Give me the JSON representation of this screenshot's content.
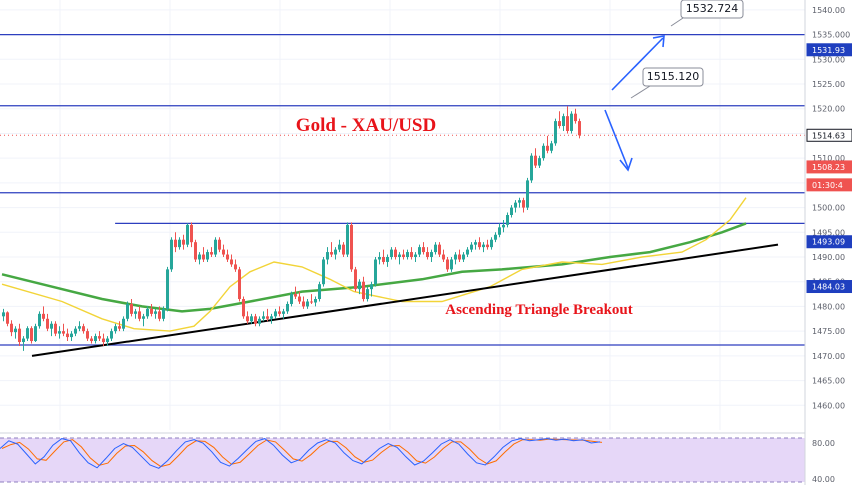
{
  "chart_data": {
    "type": "candlestick",
    "instrument": "Gold - XAU/USD",
    "price_axis": {
      "min": 1455,
      "max": 1542,
      "ticks": [
        1540,
        1535,
        1530,
        1525,
        1520,
        1515,
        1510,
        1505,
        1500,
        1495,
        1490,
        1485,
        1480,
        1475,
        1470,
        1465,
        1460
      ],
      "tick_labels": [
        "1540.00",
        "1535.000",
        "1530.00",
        "1525.00",
        "1520.00",
        "1515.00",
        "1510.00",
        "1505.00",
        "1500.00",
        "1495.00",
        "1490.00",
        "1485.00",
        "1480.00",
        "1475.00",
        "1470.00",
        "1465.00",
        "1460.00"
      ]
    },
    "price_tags": [
      {
        "label": "1531.93",
        "value": 1531.93,
        "bg": "#1f3fbf",
        "fg": "#ffffff"
      },
      {
        "label": "1514.63",
        "value": 1514.63,
        "bg": "#ffffff",
        "fg": "#131722",
        "border": "#131722"
      },
      {
        "label": "1508.23",
        "value": 1508.23,
        "bg": "#ef5350",
        "fg": "#ffffff"
      },
      {
        "label": "01:30:4",
        "value": 1504.6,
        "bg": "#ef5350",
        "fg": "#ffffff"
      },
      {
        "label": "1493.09",
        "value": 1493.09,
        "bg": "#1f3fbf",
        "fg": "#ffffff"
      },
      {
        "label": "1484.03",
        "value": 1484.03,
        "bg": "#1f3fbf",
        "fg": "#ffffff"
      }
    ],
    "horizontal_levels": [
      {
        "price": 1535.0,
        "color": "#2d3fbf",
        "x_start": 0,
        "x_end": 1
      },
      {
        "price": 1520.6,
        "color": "#2d3fbf",
        "x_start": 0,
        "x_end": 1
      },
      {
        "price": 1503.0,
        "color": "#2d3fbf",
        "x_start": 0,
        "x_end": 1
      },
      {
        "price": 1496.8,
        "color": "#2d3fbf",
        "x_start": 0.143,
        "x_end": 1
      },
      {
        "price": 1472.2,
        "color": "#2d3fbf",
        "x_start": 0,
        "x_end": 1
      }
    ],
    "dotted_level": {
      "price": 1514.63,
      "color": "#ef5350"
    },
    "trendline": {
      "from": [
        1,
        1470.0
      ],
      "to": [
        240,
        1492.5
      ],
      "color": "#000000"
    },
    "sma_fast": {
      "color": "#f2d438",
      "points": [
        [
          0,
          1484.5
        ],
        [
          15,
          1481.0
        ],
        [
          25,
          1477.5
        ],
        [
          33,
          1475.5
        ],
        [
          42,
          1475.0
        ],
        [
          48,
          1476.0
        ],
        [
          52,
          1479.0
        ],
        [
          57,
          1484.0
        ],
        [
          62,
          1487.0
        ],
        [
          68,
          1489.0
        ],
        [
          75,
          1488.0
        ],
        [
          82,
          1485.5
        ],
        [
          88,
          1483.0
        ],
        [
          100,
          1481.0
        ],
        [
          110,
          1481.0
        ],
        [
          122,
          1484.0
        ],
        [
          130,
          1487.5
        ],
        [
          140,
          1489.0
        ],
        [
          150,
          1488.5
        ],
        [
          160,
          1490.0
        ],
        [
          170,
          1491.0
        ],
        [
          176,
          1493.5
        ],
        [
          182,
          1497.5
        ],
        [
          186,
          1502.0
        ]
      ]
    },
    "sma_slow": {
      "color": "#46a843",
      "points": [
        [
          0,
          1486.5
        ],
        [
          10,
          1484.5
        ],
        [
          25,
          1481.5
        ],
        [
          35,
          1480.0
        ],
        [
          45,
          1479.0
        ],
        [
          52,
          1479.5
        ],
        [
          62,
          1481.0
        ],
        [
          75,
          1483.0
        ],
        [
          90,
          1484.0
        ],
        [
          105,
          1485.5
        ],
        [
          115,
          1487.0
        ],
        [
          125,
          1487.5
        ],
        [
          140,
          1488.5
        ],
        [
          152,
          1490.0
        ],
        [
          162,
          1491.0
        ],
        [
          172,
          1493.0
        ],
        [
          180,
          1495.0
        ],
        [
          186,
          1496.8
        ]
      ]
    },
    "candles": [
      [
        1478.0,
        1479.5,
        1477.0,
        1478.8
      ],
      [
        1478.8,
        1479.0,
        1476.0,
        1476.5
      ],
      [
        1476.5,
        1477.2,
        1474.0,
        1474.8
      ],
      [
        1474.8,
        1476.0,
        1473.5,
        1475.5
      ],
      [
        1475.5,
        1476.5,
        1472.0,
        1472.8
      ],
      [
        1472.8,
        1474.0,
        1471.0,
        1473.5
      ],
      [
        1473.5,
        1476.0,
        1473.0,
        1475.6
      ],
      [
        1475.6,
        1476.0,
        1472.5,
        1473.0
      ],
      [
        1473.0,
        1476.5,
        1472.8,
        1476.0
      ],
      [
        1476.0,
        1479.0,
        1475.5,
        1478.5
      ],
      [
        1478.5,
        1480.0,
        1477.0,
        1477.5
      ],
      [
        1477.5,
        1478.5,
        1475.0,
        1475.5
      ],
      [
        1475.5,
        1477.0,
        1474.0,
        1476.5
      ],
      [
        1476.5,
        1477.0,
        1474.0,
        1474.5
      ],
      [
        1474.5,
        1476.0,
        1473.5,
        1475.0
      ],
      [
        1475.0,
        1476.5,
        1474.0,
        1474.5
      ],
      [
        1474.5,
        1475.5,
        1473.0,
        1473.8
      ],
      [
        1473.8,
        1475.0,
        1473.0,
        1474.5
      ],
      [
        1474.5,
        1476.0,
        1474.0,
        1475.5
      ],
      [
        1475.5,
        1477.0,
        1475.0,
        1476.0
      ],
      [
        1476.0,
        1476.5,
        1474.5,
        1475.0
      ],
      [
        1475.0,
        1475.5,
        1473.0,
        1473.5
      ],
      [
        1473.5,
        1474.0,
        1472.5,
        1473.0
      ],
      [
        1473.0,
        1474.5,
        1472.5,
        1474.0
      ],
      [
        1474.0,
        1475.0,
        1473.0,
        1473.5
      ],
      [
        1473.5,
        1474.5,
        1472.0,
        1472.8
      ],
      [
        1472.8,
        1474.0,
        1472.0,
        1473.5
      ],
      [
        1473.5,
        1475.5,
        1473.0,
        1475.0
      ],
      [
        1475.0,
        1476.5,
        1474.5,
        1476.0
      ],
      [
        1476.0,
        1477.0,
        1475.0,
        1475.5
      ],
      [
        1475.5,
        1478.0,
        1475.0,
        1477.5
      ],
      [
        1477.5,
        1481.0,
        1477.0,
        1480.5
      ],
      [
        1480.5,
        1481.5,
        1478.0,
        1478.5
      ],
      [
        1478.5,
        1479.5,
        1477.5,
        1479.0
      ],
      [
        1479.0,
        1480.0,
        1477.0,
        1477.5
      ],
      [
        1477.5,
        1478.5,
        1476.0,
        1478.0
      ],
      [
        1478.0,
        1480.0,
        1477.5,
        1479.5
      ],
      [
        1479.5,
        1480.5,
        1478.0,
        1478.5
      ],
      [
        1478.5,
        1479.5,
        1477.5,
        1479.0
      ],
      [
        1479.0,
        1480.0,
        1477.0,
        1477.5
      ],
      [
        1477.5,
        1480.0,
        1477.0,
        1479.5
      ],
      [
        1479.5,
        1488.0,
        1479.0,
        1487.5
      ],
      [
        1487.5,
        1494.0,
        1487.0,
        1493.5
      ],
      [
        1493.5,
        1495.0,
        1491.0,
        1492.0
      ],
      [
        1492.0,
        1494.0,
        1491.5,
        1493.5
      ],
      [
        1493.5,
        1494.5,
        1491.5,
        1492.5
      ],
      [
        1492.5,
        1496.8,
        1492.0,
        1496.5
      ],
      [
        1496.5,
        1497.0,
        1492.0,
        1493.0
      ],
      [
        1493.0,
        1493.5,
        1489.0,
        1489.5
      ],
      [
        1489.5,
        1491.0,
        1488.5,
        1490.5
      ],
      [
        1490.5,
        1492.0,
        1489.0,
        1489.5
      ],
      [
        1489.5,
        1491.5,
        1489.0,
        1491.0
      ],
      [
        1491.0,
        1492.0,
        1490.0,
        1490.5
      ],
      [
        1490.5,
        1494.0,
        1490.0,
        1493.5
      ],
      [
        1493.5,
        1494.0,
        1491.0,
        1491.5
      ],
      [
        1491.5,
        1492.5,
        1490.0,
        1490.5
      ],
      [
        1490.5,
        1491.5,
        1489.0,
        1489.5
      ],
      [
        1489.5,
        1490.5,
        1488.0,
        1488.5
      ],
      [
        1488.5,
        1489.5,
        1487.0,
        1487.5
      ],
      [
        1487.5,
        1488.0,
        1481.0,
        1481.5
      ],
      [
        1481.5,
        1482.0,
        1477.5,
        1478.0
      ],
      [
        1478.0,
        1479.0,
        1476.5,
        1477.0
      ],
      [
        1477.0,
        1478.5,
        1476.5,
        1478.0
      ],
      [
        1478.0,
        1478.5,
        1476.0,
        1476.5
      ],
      [
        1476.5,
        1478.0,
        1476.0,
        1477.5
      ],
      [
        1477.5,
        1479.0,
        1477.0,
        1478.0
      ],
      [
        1478.0,
        1479.5,
        1477.0,
        1477.5
      ],
      [
        1477.5,
        1478.5,
        1476.5,
        1478.0
      ],
      [
        1478.0,
        1479.5,
        1477.5,
        1479.0
      ],
      [
        1479.0,
        1480.0,
        1478.0,
        1478.5
      ],
      [
        1478.5,
        1479.5,
        1477.5,
        1479.0
      ],
      [
        1479.0,
        1481.0,
        1478.5,
        1480.5
      ],
      [
        1480.5,
        1483.0,
        1480.0,
        1482.5
      ],
      [
        1482.5,
        1484.0,
        1481.5,
        1482.0
      ],
      [
        1482.0,
        1483.0,
        1480.5,
        1481.0
      ],
      [
        1481.0,
        1482.0,
        1479.5,
        1480.0
      ],
      [
        1480.0,
        1481.5,
        1479.5,
        1481.0
      ],
      [
        1481.0,
        1482.5,
        1480.5,
        1480.8
      ],
      [
        1480.8,
        1482.0,
        1480.0,
        1481.5
      ],
      [
        1481.5,
        1485.0,
        1481.0,
        1484.5
      ],
      [
        1484.5,
        1490.0,
        1484.0,
        1489.5
      ],
      [
        1489.5,
        1492.0,
        1488.5,
        1491.0
      ],
      [
        1491.0,
        1493.0,
        1490.0,
        1490.5
      ],
      [
        1490.5,
        1492.0,
        1489.5,
        1491.5
      ],
      [
        1491.5,
        1493.5,
        1491.0,
        1492.5
      ],
      [
        1492.5,
        1493.0,
        1490.0,
        1490.5
      ],
      [
        1490.5,
        1497.0,
        1490.0,
        1496.5
      ],
      [
        1496.5,
        1497.0,
        1487.0,
        1487.5
      ],
      [
        1487.5,
        1488.0,
        1483.0,
        1483.5
      ],
      [
        1483.5,
        1485.5,
        1482.5,
        1485.0
      ],
      [
        1485.0,
        1486.0,
        1481.0,
        1481.5
      ],
      [
        1481.5,
        1484.0,
        1481.0,
        1483.5
      ],
      [
        1483.5,
        1485.0,
        1482.0,
        1484.5
      ],
      [
        1484.5,
        1490.0,
        1484.0,
        1489.5
      ],
      [
        1489.5,
        1491.0,
        1488.5,
        1490.0
      ],
      [
        1490.0,
        1491.5,
        1488.5,
        1489.0
      ],
      [
        1489.0,
        1490.5,
        1488.0,
        1490.0
      ],
      [
        1490.0,
        1492.0,
        1489.5,
        1491.5
      ],
      [
        1491.5,
        1492.0,
        1489.5,
        1490.0
      ],
      [
        1490.0,
        1491.0,
        1488.5,
        1490.5
      ],
      [
        1490.5,
        1491.5,
        1489.5,
        1490.0
      ],
      [
        1490.0,
        1491.5,
        1489.5,
        1491.0
      ],
      [
        1491.0,
        1492.0,
        1489.5,
        1490.0
      ],
      [
        1490.0,
        1491.0,
        1489.0,
        1490.5
      ],
      [
        1490.5,
        1492.5,
        1490.0,
        1492.0
      ],
      [
        1492.0,
        1493.0,
        1490.5,
        1491.0
      ],
      [
        1491.0,
        1492.0,
        1489.5,
        1490.0
      ],
      [
        1490.0,
        1491.5,
        1489.0,
        1491.0
      ],
      [
        1491.0,
        1493.0,
        1490.5,
        1492.5
      ],
      [
        1492.5,
        1493.0,
        1490.0,
        1490.5
      ],
      [
        1490.5,
        1491.5,
        1489.0,
        1489.5
      ],
      [
        1489.5,
        1490.0,
        1487.0,
        1487.5
      ],
      [
        1487.5,
        1490.0,
        1487.0,
        1489.5
      ],
      [
        1489.5,
        1491.0,
        1488.5,
        1490.5
      ],
      [
        1490.5,
        1491.5,
        1489.0,
        1489.5
      ],
      [
        1489.5,
        1491.0,
        1489.0,
        1490.5
      ],
      [
        1490.5,
        1492.0,
        1490.0,
        1491.5
      ],
      [
        1491.5,
        1493.0,
        1491.0,
        1492.5
      ],
      [
        1492.5,
        1493.5,
        1491.5,
        1493.0
      ],
      [
        1493.0,
        1494.0,
        1491.5,
        1492.0
      ],
      [
        1492.0,
        1493.0,
        1491.0,
        1492.5
      ],
      [
        1492.5,
        1493.5,
        1491.5,
        1492.0
      ],
      [
        1492.0,
        1494.0,
        1491.5,
        1493.5
      ],
      [
        1493.5,
        1495.0,
        1493.0,
        1494.5
      ],
      [
        1494.5,
        1496.8,
        1494.0,
        1496.0
      ],
      [
        1496.0,
        1497.5,
        1495.0,
        1496.5
      ],
      [
        1496.5,
        1499.0,
        1496.0,
        1498.5
      ],
      [
        1498.5,
        1500.5,
        1498.0,
        1500.0
      ],
      [
        1500.0,
        1501.5,
        1499.0,
        1501.0
      ],
      [
        1501.0,
        1502.0,
        1500.0,
        1501.5
      ],
      [
        1501.5,
        1502.0,
        1499.0,
        1500.0
      ],
      [
        1500.0,
        1506.0,
        1499.5,
        1505.5
      ],
      [
        1505.5,
        1511.0,
        1505.0,
        1510.5
      ],
      [
        1510.5,
        1512.0,
        1508.0,
        1508.5
      ],
      [
        1508.5,
        1510.5,
        1508.0,
        1510.0
      ],
      [
        1510.0,
        1513.0,
        1509.5,
        1512.5
      ],
      [
        1512.5,
        1514.5,
        1511.0,
        1511.5
      ],
      [
        1511.5,
        1513.5,
        1511.0,
        1513.0
      ],
      [
        1513.0,
        1518.0,
        1512.5,
        1517.5
      ],
      [
        1517.5,
        1519.5,
        1516.0,
        1516.5
      ],
      [
        1516.5,
        1519.0,
        1515.5,
        1518.5
      ],
      [
        1518.5,
        1520.5,
        1515.0,
        1515.5
      ],
      [
        1515.5,
        1519.5,
        1515.0,
        1519.0
      ],
      [
        1519.0,
        1520.0,
        1517.0,
        1517.5
      ],
      [
        1517.5,
        1518.0,
        1514.0,
        1514.63
      ]
    ],
    "rsi": {
      "levels": [
        80,
        20
      ],
      "visible_labels": [
        "80.00",
        "40.00"
      ],
      "k_color": "#2962ff",
      "d_color": "#ff6d00",
      "values": [
        70,
        84,
        78,
        60,
        42,
        55,
        76,
        88,
        84,
        62,
        44,
        35,
        52,
        70,
        79,
        72,
        56,
        40,
        34,
        48,
        66,
        82,
        86,
        80,
        64,
        45,
        38,
        52,
        68,
        83,
        88,
        76,
        58,
        44,
        50,
        67,
        80,
        86,
        80,
        62,
        48,
        42,
        56,
        70,
        79,
        72,
        55,
        40,
        47,
        62,
        78,
        86,
        78,
        60,
        44,
        40,
        55,
        72,
        84,
        88,
        84,
        86,
        88,
        85,
        87,
        84,
        86,
        80,
        82
      ]
    },
    "annotations": {
      "title": "Gold - XAU/USD",
      "subtitle": "Ascending Triangle Breakout",
      "callout_high": "1532.724",
      "callout_mid": "1515.120"
    }
  }
}
